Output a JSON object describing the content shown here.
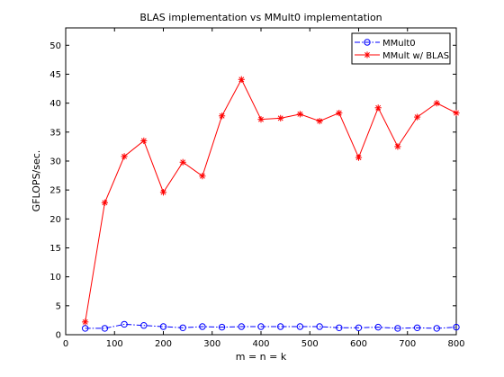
{
  "chart_data": {
    "type": "line",
    "title": "BLAS implementation vs MMult0 implementation",
    "xlabel": "m = n = k",
    "ylabel": "GFLOPS/sec.",
    "xlim": [
      0,
      800
    ],
    "ylim": [
      0,
      53
    ],
    "xticks": [
      0,
      100,
      200,
      300,
      400,
      500,
      600,
      700,
      800
    ],
    "yticks": [
      0,
      5,
      10,
      15,
      20,
      25,
      30,
      35,
      40,
      45,
      50
    ],
    "grid": false,
    "legend_position": "top-right",
    "x": [
      40,
      80,
      120,
      160,
      200,
      240,
      280,
      320,
      360,
      400,
      440,
      480,
      520,
      560,
      600,
      640,
      680,
      720,
      760,
      800
    ],
    "series": [
      {
        "name": "MMult0",
        "color": "#0000ff",
        "line_style": "dash-dot",
        "marker": "circle",
        "values": [
          1.1,
          1.1,
          1.8,
          1.6,
          1.4,
          1.2,
          1.4,
          1.3,
          1.4,
          1.4,
          1.4,
          1.4,
          1.4,
          1.2,
          1.2,
          1.3,
          1.1,
          1.2,
          1.1,
          1.3
        ]
      },
      {
        "name": "MMult w/ BLAS",
        "color": "#ff0000",
        "line_style": "solid",
        "marker": "asterisk",
        "values": [
          2.2,
          22.8,
          30.8,
          33.5,
          24.6,
          29.8,
          27.4,
          37.8,
          44.1,
          37.2,
          37.4,
          38.1,
          36.9,
          38.3,
          30.6,
          39.2,
          32.5,
          37.6,
          40.0,
          38.3
        ]
      }
    ]
  }
}
